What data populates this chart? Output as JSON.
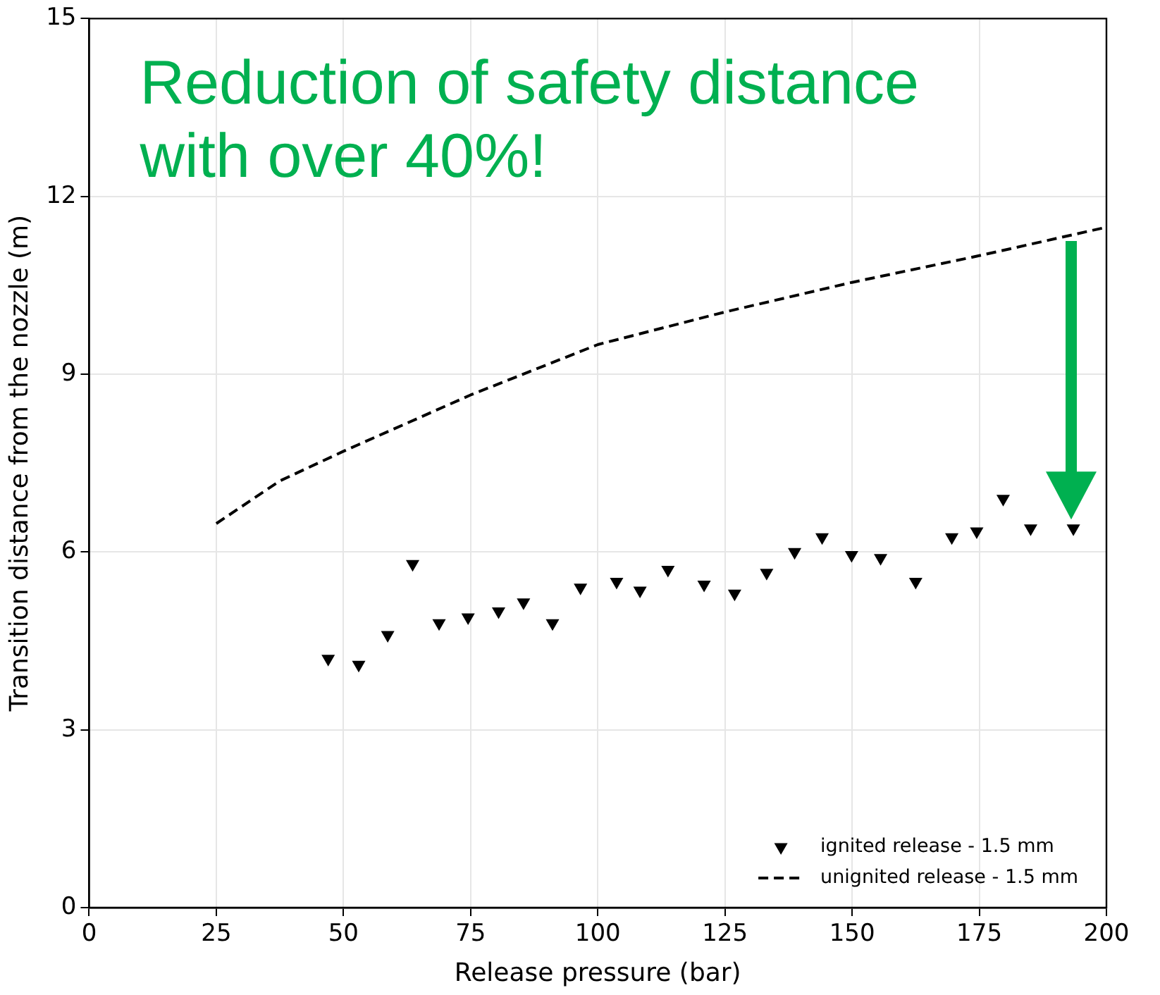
{
  "chart_data": {
    "type": "scatter",
    "xlabel": "Release pressure (bar)",
    "ylabel": "Transition distance from the nozzle (m)",
    "annotations": [
      "Reduction of safety distance with over 40%!"
    ],
    "xlim": [
      0,
      200
    ],
    "xticks": [
      0,
      25,
      50,
      75,
      100,
      125,
      150,
      175,
      200
    ],
    "ylim": [
      0,
      15
    ],
    "yticks": [
      0,
      3,
      6,
      9,
      12,
      15
    ],
    "grid": true,
    "legend": "bottom right",
    "series": [
      {
        "name": "ignited release - 1.5 mm",
        "color": "#000000",
        "marker": "triangle",
        "x": [
          47.0,
          53.0,
          58.7,
          63.6,
          68.8,
          74.5,
          80.5,
          85.4,
          91.1,
          96.6,
          103.7,
          108.3,
          113.8,
          120.9,
          126.9,
          133.2,
          138.7,
          144.1,
          149.9,
          155.6,
          162.5,
          169.6,
          174.5,
          179.7,
          185.1,
          193.5
        ],
        "values": [
          4.2,
          4.1,
          4.6,
          5.8,
          4.8,
          4.9,
          5.0,
          5.15,
          4.8,
          5.4,
          5.5,
          5.35,
          5.7,
          5.45,
          5.3,
          5.65,
          6.0,
          6.25,
          5.95,
          5.9,
          5.5,
          6.25,
          6.35,
          6.9,
          6.4,
          6.4
        ]
      },
      {
        "name": "unignited release - 1.5 mm",
        "type": "line",
        "color": "#000000",
        "marker": "none",
        "line_style": "dashed",
        "x": [
          25,
          37.5,
          50,
          75,
          100,
          125,
          150,
          175,
          200
        ],
        "values": [
          6.48,
          7.2,
          7.7,
          8.65,
          9.5,
          10.05,
          10.55,
          11.0,
          11.48
        ]
      }
    ]
  }
}
